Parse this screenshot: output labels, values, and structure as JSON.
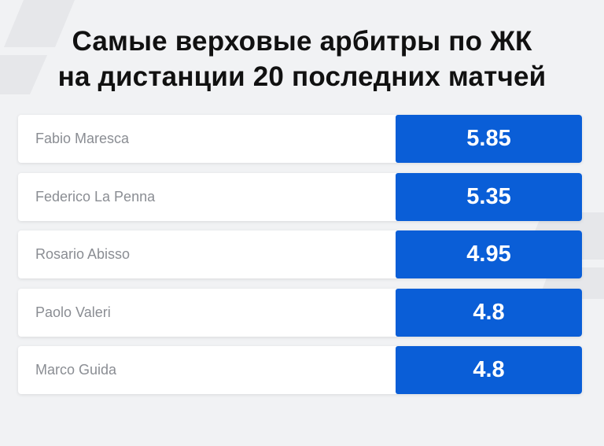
{
  "colors": {
    "background": "#f1f2f4",
    "title": "#111111",
    "row_background": "#ffffff",
    "name_text": "#8a8d93",
    "value_box": "#0a5ed7",
    "value_text": "#ffffff"
  },
  "title": {
    "line1": "Самые верховые арбитры по ЖК",
    "line2": "на дистанции 20 последних матчей"
  },
  "chart_data": {
    "type": "table",
    "title": "Самые верховые арбитры по ЖК на дистанции 20 последних матчей",
    "categories": [
      "Fabio Maresca",
      "Federico La Penna",
      "Rosario Abisso",
      "Paolo Valeri",
      "Marco Guida"
    ],
    "values": [
      5.85,
      5.35,
      4.95,
      4.8,
      4.8
    ],
    "rows": [
      {
        "name": "Fabio Maresca",
        "value": "5.85"
      },
      {
        "name": "Federico La Penna",
        "value": "5.35"
      },
      {
        "name": "Rosario Abisso",
        "value": "4.95"
      },
      {
        "name": "Paolo Valeri",
        "value": "4.8"
      },
      {
        "name": "Marco Guida",
        "value": "4.8"
      }
    ]
  }
}
